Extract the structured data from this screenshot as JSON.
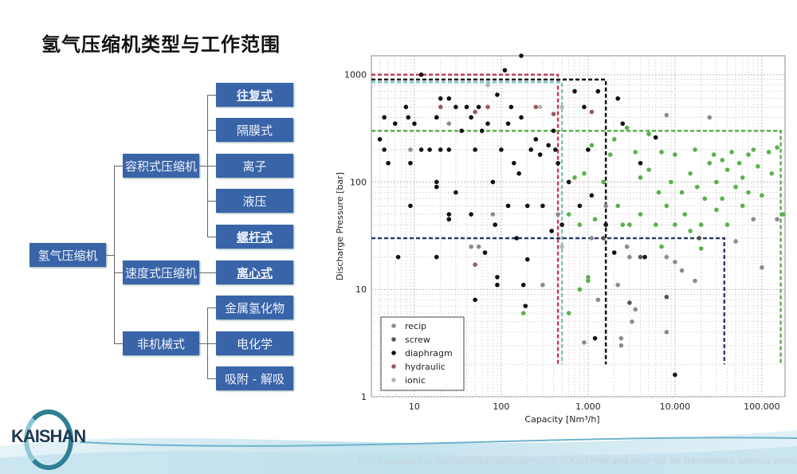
{
  "title": "氢气压缩机类型与工作范围",
  "tree": {
    "root": "氢气压缩机",
    "level2": [
      "容积式压缩机",
      "速度式压缩机",
      "非机械式"
    ],
    "level3": [
      "往复式",
      "隔膜式",
      "离子",
      "液压",
      "螺杆式",
      "离心式",
      "金属氢化物",
      "电化学",
      "吸附 - 解吸"
    ],
    "underlined": [
      "往复式",
      "螺杆式",
      "离心式"
    ]
  },
  "footer": {
    "logo": "KAISHAN",
    "disclaimer": "This document is the technical achievements of KAISHAN and may not be transmitted without permission"
  },
  "chart_data": {
    "type": "scatter",
    "xlabel": "Capacity [Nm³/h]",
    "ylabel": "Discharge Pressure [bar]",
    "xscale": "log",
    "yscale": "log",
    "xlim": [
      3.2,
      185000
    ],
    "ylim": [
      1,
      1500
    ],
    "xticks": [
      {
        "v": 10,
        "label": "10"
      },
      {
        "v": 100,
        "label": "100"
      },
      {
        "v": 1000,
        "label": "1.000"
      },
      {
        "v": 10000,
        "label": "10.000"
      },
      {
        "v": 100000,
        "label": "100.000"
      }
    ],
    "yticks": [
      {
        "v": 1,
        "label": "1"
      },
      {
        "v": 10,
        "label": "10"
      },
      {
        "v": 100,
        "label": "100"
      },
      {
        "v": 1000,
        "label": "1000"
      }
    ],
    "grid": true,
    "legend_position": "bottom-left",
    "series": [
      {
        "name": "recip",
        "color": "#8c8c8c",
        "points": [
          [
            9,
            200
          ],
          [
            25,
            350
          ],
          [
            45,
            25
          ],
          [
            55,
            25
          ],
          [
            80,
            50
          ],
          [
            120,
            60
          ],
          [
            300,
            11
          ],
          [
            450,
            50
          ],
          [
            900,
            3.2
          ],
          [
            1100,
            30
          ],
          [
            1300,
            8
          ],
          [
            1600,
            60
          ],
          [
            2200,
            11
          ],
          [
            2400,
            3.5
          ],
          [
            2400,
            3
          ],
          [
            2800,
            25
          ],
          [
            3000,
            20
          ],
          [
            3200,
            5
          ],
          [
            3500,
            6.5
          ],
          [
            8000,
            20
          ],
          [
            8000,
            4
          ],
          [
            8000,
            420
          ],
          [
            10000,
            18
          ],
          [
            12000,
            15
          ],
          [
            17000,
            12
          ],
          [
            25000,
            400
          ],
          [
            50000,
            28
          ],
          [
            80000,
            45
          ],
          [
            100000,
            16
          ],
          [
            150000,
            45
          ]
        ]
      },
      {
        "name": "screw",
        "color": "#555555",
        "points": [
          [
            8000,
            8.5
          ],
          [
            4000,
            20
          ],
          [
            3000,
            7.5
          ],
          [
            19000,
            30
          ],
          [
            1500,
            30
          ]
        ]
      },
      {
        "name": "diaphragm",
        "color": "#111111",
        "points": [
          [
            4,
            250
          ],
          [
            4.5,
            400
          ],
          [
            4.5,
            200
          ],
          [
            5,
            150
          ],
          [
            6,
            350
          ],
          [
            6.5,
            20
          ],
          [
            8,
            500
          ],
          [
            8.5,
            400
          ],
          [
            9,
            60
          ],
          [
            9,
            150
          ],
          [
            10,
            350
          ],
          [
            12,
            200
          ],
          [
            12,
            1000
          ],
          [
            15,
            200
          ],
          [
            18,
            400
          ],
          [
            20,
            600
          ],
          [
            18,
            100
          ],
          [
            18,
            90
          ],
          [
            18,
            20
          ],
          [
            20,
            200
          ],
          [
            25,
            600
          ],
          [
            25,
            200
          ],
          [
            25,
            50
          ],
          [
            25,
            45
          ],
          [
            30,
            80
          ],
          [
            30,
            500
          ],
          [
            35,
            300
          ],
          [
            40,
            500
          ],
          [
            45,
            400
          ],
          [
            45,
            50
          ],
          [
            50,
            200
          ],
          [
            50,
            8
          ],
          [
            55,
            500
          ],
          [
            60,
            300
          ],
          [
            65,
            22
          ],
          [
            70,
            350
          ],
          [
            80,
            100
          ],
          [
            85,
            40
          ],
          [
            90,
            13
          ],
          [
            90,
            11
          ],
          [
            90,
            650
          ],
          [
            100,
            200
          ],
          [
            110,
            1100
          ],
          [
            120,
            350
          ],
          [
            120,
            60
          ],
          [
            130,
            500
          ],
          [
            140,
            150
          ],
          [
            150,
            30
          ],
          [
            160,
            120
          ],
          [
            170,
            400
          ],
          [
            180,
            11
          ],
          [
            190,
            7
          ],
          [
            200,
            60
          ],
          [
            200,
            19
          ],
          [
            220,
            200
          ],
          [
            250,
            250
          ],
          [
            280,
            180
          ],
          [
            300,
            60
          ],
          [
            350,
            220
          ],
          [
            380,
            35
          ],
          [
            400,
            300
          ],
          [
            420,
            200
          ],
          [
            450,
            150
          ],
          [
            500,
            40
          ],
          [
            600,
            100
          ],
          [
            700,
            700
          ],
          [
            800,
            60
          ],
          [
            900,
            500
          ],
          [
            1000,
            200
          ],
          [
            1100,
            75
          ],
          [
            1200,
            3.5
          ],
          [
            1300,
            700
          ],
          [
            1600,
            40
          ],
          [
            2000,
            22
          ],
          [
            2200,
            600
          ],
          [
            2500,
            350
          ],
          [
            4000,
            150
          ],
          [
            4500,
            20
          ],
          [
            6000,
            260
          ],
          [
            10000,
            1.6
          ],
          [
            170,
            1500
          ]
        ]
      },
      {
        "name": "hydraulic",
        "color": "#9a5a5a",
        "points": [
          [
            20,
            500
          ],
          [
            50,
            450
          ],
          [
            50,
            17
          ],
          [
            70,
            500
          ],
          [
            400,
            430
          ],
          [
            1100,
            450
          ],
          [
            250,
            500
          ]
        ]
      },
      {
        "name": "ionic",
        "color": "#b5b5b5",
        "points": [
          [
            500,
            500
          ],
          [
            280,
            500
          ],
          [
            70,
            800
          ],
          [
            500,
            25
          ]
        ]
      },
      {
        "color": "#5cb04c",
        "points": [
          [
            600,
            50
          ],
          [
            700,
            110
          ],
          [
            800,
            40
          ],
          [
            800,
            10
          ],
          [
            900,
            120
          ],
          [
            1000,
            13
          ],
          [
            1000,
            12
          ],
          [
            1100,
            220
          ],
          [
            1200,
            45
          ],
          [
            1500,
            100
          ],
          [
            1800,
            180
          ],
          [
            2000,
            250
          ],
          [
            2200,
            60
          ],
          [
            2500,
            40
          ],
          [
            2800,
            320
          ],
          [
            3000,
            40
          ],
          [
            3500,
            190
          ],
          [
            4000,
            110
          ],
          [
            4000,
            50
          ],
          [
            5000,
            280
          ],
          [
            5000,
            130
          ],
          [
            6000,
            40
          ],
          [
            6500,
            80
          ],
          [
            7000,
            190
          ],
          [
            7000,
            25
          ],
          [
            8000,
            60
          ],
          [
            9000,
            100
          ],
          [
            10000,
            180
          ],
          [
            10000,
            40
          ],
          [
            12000,
            80
          ],
          [
            13000,
            50
          ],
          [
            15000,
            120
          ],
          [
            15000,
            35
          ],
          [
            17000,
            200
          ],
          [
            18000,
            90
          ],
          [
            20000,
            40
          ],
          [
            20000,
            24
          ],
          [
            22000,
            70
          ],
          [
            25000,
            150
          ],
          [
            28000,
            180
          ],
          [
            30000,
            100
          ],
          [
            30000,
            55
          ],
          [
            35000,
            160
          ],
          [
            35000,
            70
          ],
          [
            40000,
            130
          ],
          [
            40000,
            40
          ],
          [
            45000,
            190
          ],
          [
            50000,
            90
          ],
          [
            55000,
            150
          ],
          [
            60000,
            110
          ],
          [
            60000,
            60
          ],
          [
            70000,
            180
          ],
          [
            70000,
            80
          ],
          [
            80000,
            200
          ],
          [
            90000,
            140
          ],
          [
            100000,
            75
          ],
          [
            120000,
            190
          ],
          [
            130000,
            120
          ],
          [
            150000,
            210
          ],
          [
            175000,
            50
          ],
          [
            600,
            6
          ],
          [
            180,
            6
          ]
        ]
      }
    ],
    "ranges": [
      {
        "color": "#c0405a",
        "xmax": 450,
        "ymax": 1000,
        "ymin": 2
      },
      {
        "color": "#7cc6c0",
        "xmax": 500,
        "ymax": 850,
        "ymin": 2
      },
      {
        "color": "#111111",
        "xmax": 1600,
        "ymax": 900,
        "ymin": 2
      },
      {
        "color": "#5cb04c",
        "xmax": 165000,
        "ymax": 300,
        "ymin": 2
      },
      {
        "color": "#2e3a6e",
        "xmax": 37000,
        "ymax": 30,
        "ymin": 2
      }
    ]
  }
}
